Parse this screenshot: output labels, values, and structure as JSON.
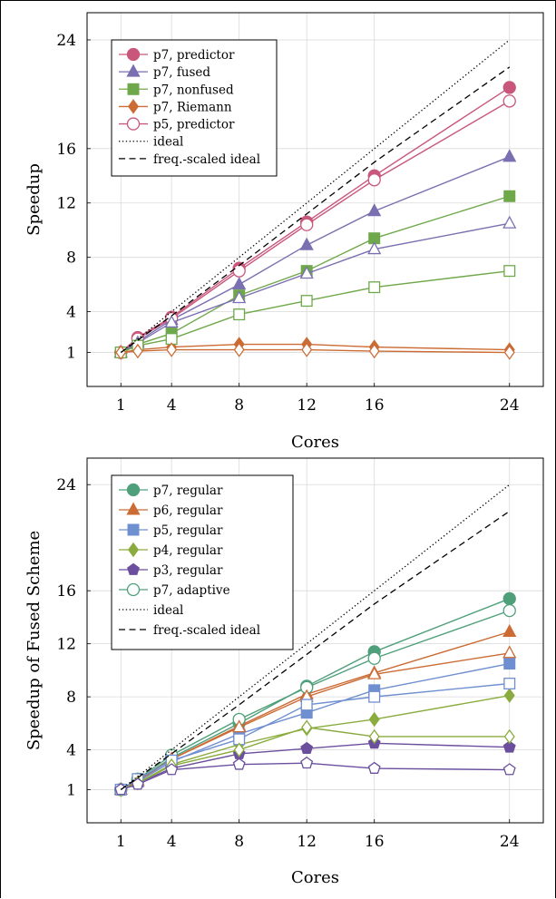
{
  "chart_data": [
    {
      "type": "line",
      "title": "",
      "xlabel": "Cores",
      "ylabel": "Speedup",
      "x": [
        1,
        2,
        4,
        8,
        12,
        16,
        24
      ],
      "xticks": [
        1,
        4,
        8,
        12,
        16,
        24
      ],
      "yticks": [
        1,
        4,
        8,
        12,
        16,
        24
      ],
      "xlim": [
        -1,
        26
      ],
      "ylim": [
        -1.5,
        26
      ],
      "grid": true,
      "legend_position": "top-left",
      "series": [
        {
          "name": "p7, predictor",
          "color": "#c9577b",
          "marker": "circle",
          "filled": true,
          "values": [
            1,
            2.1,
            3.6,
            7.2,
            10.6,
            14.0,
            20.5
          ]
        },
        {
          "name": "p7, fused",
          "color": "#7a6fb0",
          "marker": "triangle",
          "filled": true,
          "values": [
            1,
            1.8,
            3.4,
            6.0,
            8.9,
            11.4,
            15.4
          ]
        },
        {
          "name": "p7, nonfused",
          "color": "#6fa84a",
          "marker": "square",
          "filled": true,
          "values": [
            1,
            1.6,
            2.4,
            5.2,
            7.0,
            9.4,
            12.5
          ]
        },
        {
          "name": "p7, Riemann",
          "color": "#cc6b34",
          "marker": "diamond",
          "filled": true,
          "values": [
            1,
            1.2,
            1.4,
            1.6,
            1.6,
            1.4,
            1.2
          ]
        },
        {
          "name": "p5, predictor",
          "color": "#c9577b",
          "marker": "circle",
          "filled": false,
          "values": [
            1,
            2.0,
            3.5,
            7.0,
            10.4,
            13.7,
            19.5
          ]
        },
        {
          "name": "",
          "color": "#7a6fb0",
          "marker": "triangle",
          "filled": false,
          "values": [
            1,
            1.7,
            3.2,
            5.0,
            6.8,
            8.6,
            10.5
          ]
        },
        {
          "name": "",
          "color": "#6fa84a",
          "marker": "square",
          "filled": false,
          "values": [
            1,
            1.5,
            2.0,
            3.8,
            4.8,
            5.8,
            7.0
          ]
        },
        {
          "name": "",
          "color": "#cc6b34",
          "marker": "diamond",
          "filled": false,
          "values": [
            1,
            1.1,
            1.2,
            1.2,
            1.2,
            1.1,
            1.0
          ]
        },
        {
          "name": "ideal",
          "color": "#000000",
          "style": "dotted",
          "values": [
            1,
            2,
            4,
            8,
            12,
            16,
            24
          ]
        },
        {
          "name": "freq.-scaled ideal",
          "color": "#000000",
          "style": "dashed",
          "values": [
            1,
            1.9,
            3.7,
            7.4,
            11.2,
            15.0,
            22.0
          ]
        }
      ]
    },
    {
      "type": "line",
      "title": "",
      "xlabel": "Cores",
      "ylabel": "Speedup of Fused Scheme",
      "x": [
        1,
        2,
        4,
        8,
        12,
        16,
        24
      ],
      "xticks": [
        1,
        4,
        8,
        12,
        16,
        24
      ],
      "yticks": [
        1,
        4,
        8,
        12,
        16,
        24
      ],
      "xlim": [
        -1,
        26
      ],
      "ylim": [
        -1.5,
        26
      ],
      "grid": true,
      "legend_position": "top-left",
      "series": [
        {
          "name": "p7, regular",
          "color": "#4fa07a",
          "marker": "circle",
          "filled": true,
          "values": [
            1,
            1.7,
            3.4,
            6.0,
            8.8,
            11.4,
            15.4
          ]
        },
        {
          "name": "p6, regular",
          "color": "#cc6b34",
          "marker": "triangle",
          "filled": true,
          "values": [
            1,
            1.6,
            3.3,
            5.8,
            8.2,
            9.8,
            12.9
          ]
        },
        {
          "name": "p5, regular",
          "color": "#6f8fd0",
          "marker": "square",
          "filled": true,
          "values": [
            1,
            1.6,
            3.1,
            5.2,
            6.8,
            8.5,
            10.5
          ]
        },
        {
          "name": "p4, regular",
          "color": "#8aac3e",
          "marker": "diamond",
          "filled": true,
          "values": [
            1,
            1.5,
            2.9,
            4.4,
            5.6,
            6.3,
            8.1
          ]
        },
        {
          "name": "p3, regular",
          "color": "#6b4f9e",
          "marker": "pentagon",
          "filled": true,
          "values": [
            1,
            1.5,
            2.6,
            3.7,
            4.1,
            4.5,
            4.2
          ]
        },
        {
          "name": "p7, adaptive",
          "color": "#4fa07a",
          "marker": "circle",
          "filled": false,
          "values": [
            1,
            1.8,
            3.6,
            6.3,
            8.7,
            10.9,
            14.5
          ]
        },
        {
          "name": "",
          "color": "#cc6b34",
          "marker": "triangle",
          "filled": false,
          "values": [
            1,
            1.7,
            3.3,
            5.7,
            8.0,
            9.7,
            11.3
          ]
        },
        {
          "name": "",
          "color": "#6f8fd0",
          "marker": "square",
          "filled": false,
          "values": [
            1,
            1.8,
            3.2,
            4.8,
            7.4,
            8.0,
            9.0
          ]
        },
        {
          "name": "",
          "color": "#8aac3e",
          "marker": "diamond",
          "filled": false,
          "values": [
            1,
            1.5,
            2.8,
            4.0,
            5.7,
            5.0,
            5.0
          ]
        },
        {
          "name": "",
          "color": "#6b4f9e",
          "marker": "pentagon",
          "filled": false,
          "values": [
            1,
            1.4,
            2.5,
            2.9,
            3.0,
            2.6,
            2.5
          ]
        },
        {
          "name": "ideal",
          "color": "#000000",
          "style": "dotted",
          "values": [
            1,
            2,
            4,
            8,
            12,
            16,
            24
          ]
        },
        {
          "name": "freq.-scaled ideal",
          "color": "#000000",
          "style": "dashed",
          "values": [
            1,
            1.9,
            3.7,
            7.4,
            11.2,
            15.0,
            22.0
          ]
        }
      ]
    }
  ]
}
